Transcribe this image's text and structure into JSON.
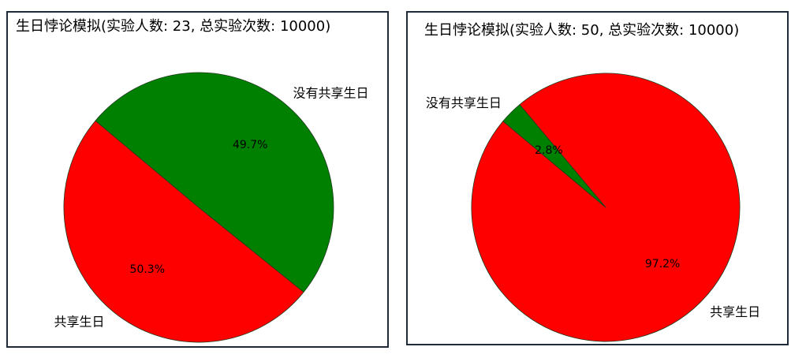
{
  "chart_data": [
    {
      "type": "pie",
      "title": "生日悖论模拟(实验人数: 23, 总实验次数: 10000)",
      "categories": [
        "共享生日",
        "没有共享生日"
      ],
      "values": [
        50.3,
        49.7
      ],
      "value_labels": [
        "50.3%",
        "49.7%"
      ],
      "colors": [
        "#ff0000",
        "#008000"
      ],
      "edge_color": "#1f3a1f"
    },
    {
      "type": "pie",
      "title": "生日悖论模拟(实验人数: 50, 总实验次数: 10000)",
      "categories": [
        "共享生日",
        "没有共享生日"
      ],
      "values": [
        97.2,
        2.8
      ],
      "value_labels": [
        "97.2%",
        "2.8%"
      ],
      "colors": [
        "#ff0000",
        "#008000"
      ],
      "edge_color": "#1f3a1f"
    }
  ],
  "frame_color": "#1e2a38"
}
